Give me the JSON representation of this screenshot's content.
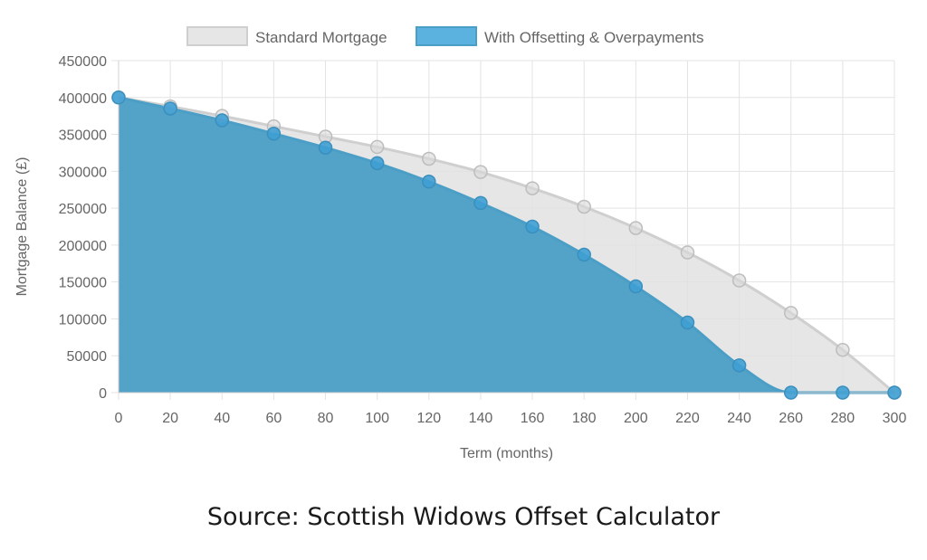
{
  "chart_data": {
    "type": "area",
    "xlabel": "Term (months)",
    "ylabel": "Mortgage Balance (£)",
    "x": [
      0,
      20,
      40,
      60,
      80,
      100,
      120,
      140,
      160,
      180,
      200,
      220,
      240,
      260,
      280,
      300
    ],
    "xticks": [
      "0",
      "20",
      "40",
      "60",
      "80",
      "100",
      "120",
      "140",
      "160",
      "180",
      "200",
      "220",
      "240",
      "260",
      "280",
      "300"
    ],
    "yticks": [
      "450000",
      "400000",
      "350000",
      "300000",
      "250000",
      "200000",
      "150000",
      "100000",
      "50000",
      "0"
    ],
    "ylim": [
      0,
      450000
    ],
    "xlim": [
      0,
      300
    ],
    "grid": true,
    "legend_position": "top",
    "series": [
      {
        "name": "Standard Mortgage",
        "values": [
          400000,
          388000,
          375000,
          361000,
          347000,
          333000,
          317000,
          299000,
          277000,
          252000,
          223000,
          190000,
          152000,
          108000,
          58000,
          0
        ],
        "fill": "#e2e2e2",
        "stroke": "#cfcfcf",
        "point_fill": "#d9d9d9",
        "point_stroke": "#bdbdbd"
      },
      {
        "name": "With Offsetting & Overpayments",
        "values": [
          400000,
          385000,
          369000,
          351000,
          332000,
          311000,
          286000,
          257000,
          225000,
          187000,
          144000,
          95000,
          37000,
          0,
          0,
          0
        ],
        "fill": "#4b9ec6",
        "stroke": "#4b9ec6",
        "point_fill": "#3f9fd3",
        "point_stroke": "#3a8fbd"
      }
    ]
  },
  "caption": {
    "source": "Source: Scottish Widows Offset Calculator"
  }
}
